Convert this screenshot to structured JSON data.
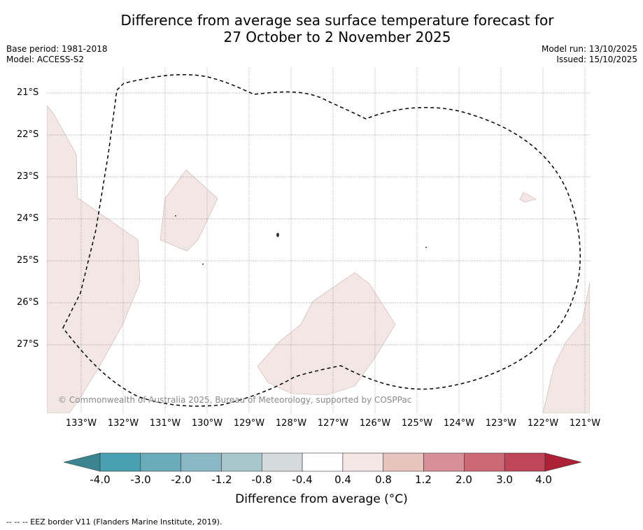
{
  "header": {
    "title_line1": "Difference from average sea surface temperature forecast for",
    "title_line2": "27 October to 2 November 2025",
    "base_period": "Base period: 1981-2018",
    "model": "Model: ACCESS-S2",
    "model_run": "Model run: 13/10/2025",
    "issued": "Issued: 15/10/2025"
  },
  "map": {
    "copyright": "© Commonwealth of Australia 2025, Bureau of Meteorology, supported by COSPPac",
    "lat_labels": [
      "21°S",
      "22°S",
      "23°S",
      "24°S",
      "25°S",
      "26°S",
      "27°S"
    ],
    "lon_labels": [
      "133°W",
      "132°W",
      "131°W",
      "130°W",
      "129°W",
      "128°W",
      "127°W",
      "126°W",
      "125°W",
      "124°W",
      "123°W",
      "122°W",
      "121°W"
    ],
    "colors": {
      "anomaly_0_4_to_0_8": "#f3e7e5",
      "eez_border": "#000000",
      "gridline": "#888888"
    }
  },
  "colorbar": {
    "ticks": [
      "-4.0",
      "-3.0",
      "-2.0",
      "-1.2",
      "-0.8",
      "-0.4",
      "0.4",
      "0.8",
      "1.2",
      "2.0",
      "3.0",
      "4.0"
    ],
    "colors": [
      "#3b8591",
      "#47a0b0",
      "#6aacba",
      "#89b8c4",
      "#a7c7cc",
      "#d4dbdb",
      "#ffffff",
      "#f3e7e5",
      "#e8c4bf",
      "#d88f97",
      "#cc6873",
      "#bf4558",
      "#ad2035"
    ],
    "label": "Difference from average (°C)"
  },
  "footnote": "--  --  -- EEZ border V11 (Flanders Marine Institute, 2019)."
}
